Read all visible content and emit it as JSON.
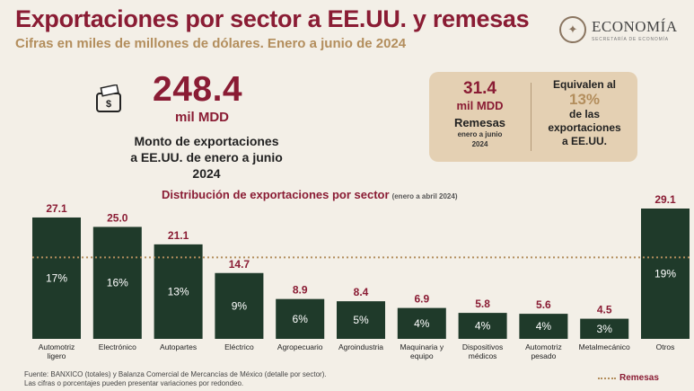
{
  "header": {
    "title": "Exportaciones por sector a EE.UU. y remesas",
    "subtitle": "Cifras en miles de millones de dólares. Enero a junio de 2024",
    "logo_text": "ECONOMÍA",
    "logo_subtext": "SECRETARÍA DE ECONOMÍA"
  },
  "summary": {
    "icon": "money-icon",
    "value": "248.4",
    "unit": "mil MDD",
    "description_line1": "Monto de exportaciones",
    "description_line2": "a EE.UU. de enero a junio 2024"
  },
  "remittances": {
    "value": "31.4",
    "unit": "mil MDD",
    "label": "Remesas",
    "period_line1": "enero a junio",
    "period_line2": "2024",
    "equiv_line1": "Equivalen al",
    "percent": "13%",
    "equiv_line2": "de las",
    "equiv_line3": "exportaciones",
    "equiv_line4": "a EE.UU."
  },
  "chart_data": {
    "type": "bar",
    "title": "Distribución de exportaciones por sector",
    "title_note": "(enero a abril 2024)",
    "categories": [
      [
        "Automotriz",
        "ligero"
      ],
      [
        "Electrónico"
      ],
      [
        "Autopartes"
      ],
      [
        "Eléctrico"
      ],
      [
        "Agropecuario"
      ],
      [
        "Agroindustria"
      ],
      [
        "Maquinaria y",
        "equipo"
      ],
      [
        "Dispositivos",
        "médicos"
      ],
      [
        "Automotriz",
        "pesado"
      ],
      [
        "Metalmecánico"
      ],
      [
        "Otros"
      ]
    ],
    "values": [
      27.1,
      25.0,
      21.1,
      14.7,
      8.9,
      8.4,
      6.9,
      5.8,
      5.6,
      4.5,
      29.1
    ],
    "value_labels": [
      "27.1",
      "25.0",
      "21.1",
      "14.7",
      "8.9",
      "8.4",
      "6.9",
      "5.8",
      "5.6",
      "4.5",
      "29.1"
    ],
    "percent_labels": [
      "17%",
      "16%",
      "13%",
      "9%",
      "6%",
      "5%",
      "4%",
      "4%",
      "4%",
      "3%",
      "19%"
    ],
    "reference_line": {
      "name": "Remesas",
      "value": 18.2
    },
    "ylim": [
      0,
      30
    ],
    "grid": false,
    "legend": "bottom-right",
    "colors": {
      "bar": "#1f3a2a",
      "value_label": "#8a1c34",
      "percent_label": "#ffffff",
      "reference": "#b38e5d"
    }
  },
  "footnote": {
    "line1": "Fuente: BANXICO (totales) y Balanza Comercial de Mercancías de México (detalle por sector).",
    "line2": "Las cifras o porcentajes pueden presentar variaciones por redondeo."
  },
  "legend": {
    "label": "Remesas"
  }
}
